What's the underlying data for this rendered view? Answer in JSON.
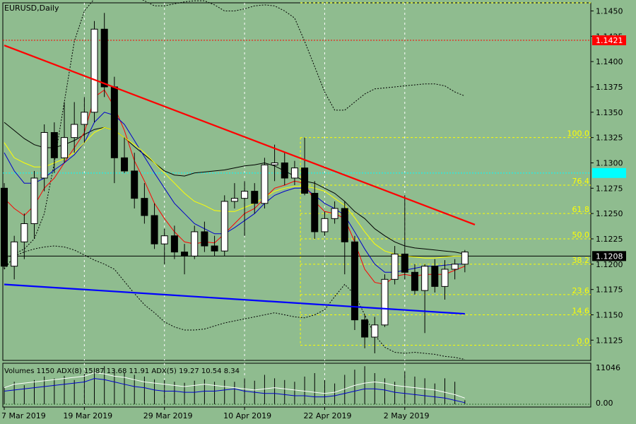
{
  "header": {
    "symbol_label": "EURUSD,Daily",
    "indicator_label": "Volumes 1150 ADX(8) 15.87 13.68 11.91 ADX(5) 19.27 10.54 8.34"
  },
  "chart_data": [
    {
      "type": "candlestick",
      "title": "EURUSD,Daily",
      "xlabel": "",
      "ylabel": "",
      "ylim": [
        1.1105,
        1.1458
      ],
      "y_ticks": [
        "1.1450",
        "1.1425",
        "1.1400",
        "1.1375",
        "1.1350",
        "1.1325",
        "1.1300",
        "1.1275",
        "1.1250",
        "1.1225",
        "1.1200",
        "1.1175",
        "1.1150",
        "1.1125"
      ],
      "x_ticks": [
        {
          "i": 0,
          "label": "7 Mar 2019"
        },
        {
          "i": 8,
          "label": "19 Mar 2019"
        },
        {
          "i": 16,
          "label": "29 Mar 2019"
        },
        {
          "i": 24,
          "label": "10 Apr 2019"
        },
        {
          "i": 32,
          "label": "22 Apr 2019"
        },
        {
          "i": 40,
          "label": "2 May 2019"
        }
      ],
      "candles": [
        {
          "o": 1.1275,
          "h": 1.128,
          "l": 1.1195,
          "c": 1.1198
        },
        {
          "o": 1.1198,
          "h": 1.1228,
          "l": 1.1185,
          "c": 1.1222
        },
        {
          "o": 1.1222,
          "h": 1.125,
          "l": 1.1205,
          "c": 1.124
        },
        {
          "o": 1.124,
          "h": 1.1292,
          "l": 1.1225,
          "c": 1.1285
        },
        {
          "o": 1.1285,
          "h": 1.1338,
          "l": 1.1272,
          "c": 1.133
        },
        {
          "o": 1.133,
          "h": 1.134,
          "l": 1.129,
          "c": 1.1305
        },
        {
          "o": 1.1305,
          "h": 1.136,
          "l": 1.13,
          "c": 1.1325
        },
        {
          "o": 1.1325,
          "h": 1.136,
          "l": 1.131,
          "c": 1.1338
        },
        {
          "o": 1.1338,
          "h": 1.1365,
          "l": 1.132,
          "c": 1.135
        },
        {
          "o": 1.135,
          "h": 1.144,
          "l": 1.134,
          "c": 1.1432
        },
        {
          "o": 1.1432,
          "h": 1.1448,
          "l": 1.1365,
          "c": 1.1375
        },
        {
          "o": 1.1375,
          "h": 1.1385,
          "l": 1.128,
          "c": 1.1305
        },
        {
          "o": 1.1305,
          "h": 1.1325,
          "l": 1.129,
          "c": 1.1292
        },
        {
          "o": 1.1292,
          "h": 1.131,
          "l": 1.1255,
          "c": 1.1265
        },
        {
          "o": 1.1265,
          "h": 1.128,
          "l": 1.124,
          "c": 1.1248
        },
        {
          "o": 1.1248,
          "h": 1.126,
          "l": 1.1215,
          "c": 1.122
        },
        {
          "o": 1.122,
          "h": 1.1235,
          "l": 1.12,
          "c": 1.1228
        },
        {
          "o": 1.1228,
          "h": 1.1238,
          "l": 1.1205,
          "c": 1.1212
        },
        {
          "o": 1.1212,
          "h": 1.122,
          "l": 1.119,
          "c": 1.1208
        },
        {
          "o": 1.1208,
          "h": 1.1238,
          "l": 1.1205,
          "c": 1.1232
        },
        {
          "o": 1.1232,
          "h": 1.1242,
          "l": 1.1212,
          "c": 1.1218
        },
        {
          "o": 1.1218,
          "h": 1.1228,
          "l": 1.1208,
          "c": 1.1213
        },
        {
          "o": 1.1213,
          "h": 1.1268,
          "l": 1.1208,
          "c": 1.1262
        },
        {
          "o": 1.1262,
          "h": 1.128,
          "l": 1.1255,
          "c": 1.1265
        },
        {
          "o": 1.1265,
          "h": 1.1282,
          "l": 1.1228,
          "c": 1.1272
        },
        {
          "o": 1.1272,
          "h": 1.128,
          "l": 1.125,
          "c": 1.126
        },
        {
          "o": 1.126,
          "h": 1.1305,
          "l": 1.1255,
          "c": 1.1298
        },
        {
          "o": 1.1298,
          "h": 1.1318,
          "l": 1.1282,
          "c": 1.13
        },
        {
          "o": 1.13,
          "h": 1.131,
          "l": 1.1278,
          "c": 1.1285
        },
        {
          "o": 1.1285,
          "h": 1.1302,
          "l": 1.1278,
          "c": 1.1295
        },
        {
          "o": 1.1295,
          "h": 1.1325,
          "l": 1.1268,
          "c": 1.127
        },
        {
          "o": 1.127,
          "h": 1.1282,
          "l": 1.1225,
          "c": 1.1232
        },
        {
          "o": 1.1232,
          "h": 1.1252,
          "l": 1.1228,
          "c": 1.1245
        },
        {
          "o": 1.1245,
          "h": 1.1262,
          "l": 1.124,
          "c": 1.1255
        },
        {
          "o": 1.1255,
          "h": 1.1262,
          "l": 1.119,
          "c": 1.1222
        },
        {
          "o": 1.1222,
          "h": 1.1228,
          "l": 1.1135,
          "c": 1.1145
        },
        {
          "o": 1.1145,
          "h": 1.115,
          "l": 1.1117,
          "c": 1.1128
        },
        {
          "o": 1.1128,
          "h": 1.1148,
          "l": 1.1112,
          "c": 1.114
        },
        {
          "o": 1.114,
          "h": 1.119,
          "l": 1.1138,
          "c": 1.1185
        },
        {
          "o": 1.1185,
          "h": 1.1218,
          "l": 1.118,
          "c": 1.121
        },
        {
          "o": 1.121,
          "h": 1.1268,
          "l": 1.1185,
          "c": 1.1192
        },
        {
          "o": 1.1192,
          "h": 1.12,
          "l": 1.117,
          "c": 1.1174
        },
        {
          "o": 1.1174,
          "h": 1.12,
          "l": 1.1132,
          "c": 1.1198
        },
        {
          "o": 1.1198,
          "h": 1.1205,
          "l": 1.1172,
          "c": 1.1178
        },
        {
          "o": 1.1178,
          "h": 1.1204,
          "l": 1.1165,
          "c": 1.1195
        },
        {
          "o": 1.1195,
          "h": 1.1205,
          "l": 1.1185,
          "c": 1.12
        },
        {
          "o": 1.12,
          "h": 1.1214,
          "l": 1.1192,
          "c": 1.1212
        }
      ],
      "bands": {
        "upper": [
          1.1205,
          1.121,
          1.1215,
          1.1225,
          1.125,
          1.13,
          1.136,
          1.142,
          1.145,
          1.1462,
          1.147,
          1.147,
          1.1468,
          1.1465,
          1.146,
          1.1455,
          1.1455,
          1.1457,
          1.1459,
          1.146,
          1.146,
          1.1456,
          1.145,
          1.145,
          1.1452,
          1.1455,
          1.1456,
          1.1455,
          1.145,
          1.1443,
          1.142,
          1.1395,
          1.137,
          1.1352,
          1.1352,
          1.136,
          1.1368,
          1.1373,
          1.1374,
          1.1375,
          1.1376,
          1.1377,
          1.1378,
          1.1378,
          1.1376,
          1.137,
          1.1366
        ],
        "mid": [
          1.134,
          1.1332,
          1.1324,
          1.1318,
          1.1315,
          1.1315,
          1.1318,
          1.1322,
          1.1328,
          1.1333,
          1.1335,
          1.1332,
          1.1325,
          1.1316,
          1.1308,
          1.13,
          1.1292,
          1.1288,
          1.1287,
          1.129,
          1.1291,
          1.1292,
          1.1293,
          1.1295,
          1.1297,
          1.1298,
          1.13,
          1.1297,
          1.1292,
          1.1287,
          1.1282,
          1.128,
          1.1275,
          1.127,
          1.1262,
          1.1252,
          1.1245,
          1.1235,
          1.1228,
          1.1222,
          1.1218,
          1.1216,
          1.1215,
          1.1214,
          1.1213,
          1.1212,
          1.121
        ],
        "lower": [
          1.1195,
          1.1208,
          1.1212,
          1.1215,
          1.1217,
          1.1218,
          1.1217,
          1.1214,
          1.1209,
          1.1204,
          1.12,
          1.1195,
          1.1183,
          1.1171,
          1.116,
          1.1152,
          1.1143,
          1.1138,
          1.1135,
          1.1135,
          1.1136,
          1.1139,
          1.1142,
          1.1144,
          1.1146,
          1.1148,
          1.115,
          1.1152,
          1.115,
          1.1148,
          1.1147,
          1.115,
          1.1155,
          1.1168,
          1.118,
          1.117,
          1.115,
          1.113,
          1.1118,
          1.1113,
          1.1112,
          1.1113,
          1.1112,
          1.1111,
          1.1109,
          1.1108,
          1.1106
        ]
      },
      "moving_averages": [
        {
          "color": "#ff0000",
          "values": [
            1.1265,
            1.1255,
            1.1248,
            1.1258,
            1.1275,
            1.1285,
            1.13,
            1.1315,
            1.133,
            1.1365,
            1.1372,
            1.1355,
            1.1332,
            1.1302,
            1.1282,
            1.126,
            1.1245,
            1.1232,
            1.1222,
            1.122,
            1.1222,
            1.1221,
            1.123,
            1.124,
            1.125,
            1.1255,
            1.1265,
            1.1275,
            1.1278,
            1.1282,
            1.128,
            1.1262,
            1.1252,
            1.125,
            1.1245,
            1.1222,
            1.1195,
            1.1182,
            1.118,
            1.1188,
            1.119,
            1.1188,
            1.119,
            1.119,
            1.119,
            1.1194,
            1.1198
          ]
        },
        {
          "color": "#0000cc",
          "values": [
            1.131,
            1.1292,
            1.128,
            1.128,
            1.1285,
            1.1293,
            1.13,
            1.1308,
            1.132,
            1.134,
            1.135,
            1.1347,
            1.1338,
            1.1322,
            1.1306,
            1.129,
            1.1275,
            1.126,
            1.125,
            1.124,
            1.1235,
            1.123,
            1.123,
            1.1236,
            1.1243,
            1.125,
            1.126,
            1.1268,
            1.1272,
            1.1275,
            1.1275,
            1.1268,
            1.126,
            1.1255,
            1.1248,
            1.1232,
            1.1215,
            1.12,
            1.1192,
            1.1192,
            1.1194,
            1.1196,
            1.1198,
            1.1198,
            1.1199,
            1.12,
            1.12
          ]
        },
        {
          "color": "#ffff00",
          "values": [
            1.132,
            1.1305,
            1.13,
            1.1296,
            1.1296,
            1.13,
            1.1304,
            1.131,
            1.132,
            1.133,
            1.1335,
            1.1332,
            1.1325,
            1.1318,
            1.131,
            1.13,
            1.129,
            1.128,
            1.127,
            1.1262,
            1.1258,
            1.1253,
            1.1252,
            1.1252,
            1.1256,
            1.126,
            1.1266,
            1.1272,
            1.1275,
            1.1277,
            1.1277,
            1.1275,
            1.1272,
            1.1265,
            1.1258,
            1.1246,
            1.1232,
            1.122,
            1.1213,
            1.121,
            1.1208,
            1.1207,
            1.1206,
            1.1206,
            1.1207,
            1.1208,
            1.1208
          ]
        }
      ],
      "fibonacci": {
        "start_index": 30,
        "levels": [
          {
            "label": "100.0",
            "price": 1.1325
          },
          {
            "label": "76.4",
            "price": 1.1278
          },
          {
            "label": "61.8",
            "price": 1.125
          },
          {
            "label": "50.0",
            "price": 1.1225
          },
          {
            "label": "38.2",
            "price": 1.12
          },
          {
            "label": "23.6",
            "price": 1.117
          },
          {
            "label": "14.6",
            "price": 1.115
          },
          {
            "label": "0.0",
            "price": 1.112
          }
        ],
        "top_level_price": 1.1458
      },
      "trendlines": [
        {
          "color": "#ff0000",
          "from": {
            "i": 0,
            "p": 1.1416
          },
          "to": {
            "i": 47,
            "p": 1.1239
          }
        },
        {
          "color": "#0000ff",
          "from": {
            "i": 0,
            "p": 1.118
          },
          "to": {
            "i": 46,
            "p": 1.1151
          }
        }
      ],
      "horizontal_lines": [
        {
          "price": 1.1421,
          "color": "#ff0000",
          "style": "dotted",
          "tag": "1.1421",
          "tag_bg": "#ff0000",
          "tag_fg": "#ffffff"
        },
        {
          "price": 1.129,
          "color": "#00ffff",
          "style": "dotted",
          "tag": "1.1290",
          "tag_bg": "#00ffff",
          "tag_fg": "#00ffff"
        },
        {
          "price": 1.1208,
          "color": "#000000",
          "style": "solid",
          "tag": "1.1208",
          "tag_bg": "#000000",
          "tag_fg": "#ffffff"
        }
      ],
      "colors": {
        "background": "#8fbc8f",
        "bull": "#ffffff",
        "bear": "#000000",
        "grid": "#ffffff",
        "fib": "#ffff00"
      }
    },
    {
      "type": "histogram",
      "title": "Volumes 1150 ADX(8) 15.87 13.68 11.91 ADX(5) 19.27 10.54 8.34",
      "y_ticks": [
        "11046",
        "0.00"
      ],
      "volumes": [
        5000,
        6500,
        5500,
        7000,
        8000,
        7500,
        8200,
        7000,
        8800,
        10500,
        11000,
        10000,
        9000,
        8500,
        8000,
        7200,
        7000,
        6500,
        6200,
        6800,
        7200,
        6500,
        7000,
        6500,
        7500,
        6800,
        8500,
        7500,
        7000,
        6500,
        8000,
        9000,
        7000,
        6000,
        8500,
        10000,
        11000,
        9000,
        7500,
        6500,
        9500,
        8000,
        7500,
        6000,
        7500,
        6500,
        1150
      ],
      "adx_white": [
        15,
        18,
        19,
        20,
        21,
        22,
        23,
        24,
        25,
        28,
        27,
        25,
        24,
        22,
        20,
        19,
        18,
        17,
        16,
        17,
        18,
        17,
        16,
        15,
        14,
        13,
        14,
        15,
        14,
        13,
        12,
        11,
        10,
        11,
        14,
        17,
        19,
        20,
        19,
        17,
        16,
        15,
        14,
        13,
        11,
        9,
        6
      ],
      "adx_blue": [
        12,
        13,
        14,
        15,
        16,
        17,
        18,
        19,
        20,
        23,
        22,
        20,
        18,
        16,
        15,
        13,
        12,
        12,
        11,
        11,
        12,
        12,
        13,
        14,
        12,
        11,
        10,
        10,
        9,
        8,
        8,
        7,
        7,
        8,
        10,
        12,
        14,
        14,
        13,
        11,
        10,
        9,
        8,
        7,
        6,
        4,
        2
      ]
    }
  ]
}
